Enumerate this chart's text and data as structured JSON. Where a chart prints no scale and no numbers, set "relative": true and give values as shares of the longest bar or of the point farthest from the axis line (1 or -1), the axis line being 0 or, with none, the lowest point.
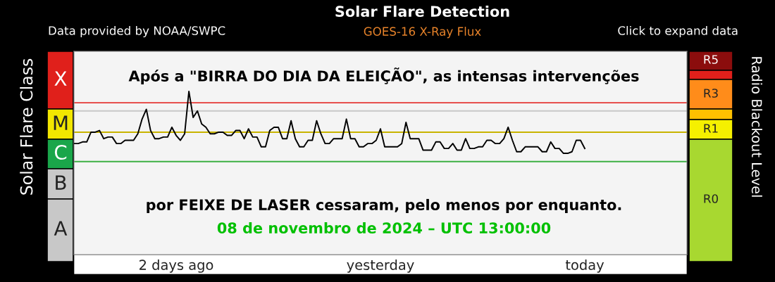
{
  "chart_data": {
    "type": "line",
    "title": "Solar Flare Detection",
    "subtitle": "GOES-16 X-Ray Flux",
    "ylabel": "Solar Flare Class",
    "y2label": "Radio Blackout Level",
    "relative": true,
    "annotations": [
      "Data provided by NOAA/SWPC",
      "Click to expand data",
      "X",
      "M",
      "C",
      "B",
      "A",
      "R5",
      "R3",
      "R1",
      "R0",
      "Após a \"BIRRA DO DIA DA ELEIÇÃO\", as intensas intervenções",
      "por FEIXE DE LASER cessaram, pelo menos por enquanto.",
      "08 de novembro de 2024 – UTC 13:00:00"
    ],
    "categories": [
      null,
      null,
      null,
      null,
      null,
      null,
      null,
      null,
      null,
      null,
      null,
      null,
      null,
      null,
      null,
      null,
      null,
      null,
      null,
      null,
      null,
      null,
      null,
      null,
      "2 days ago",
      null,
      null,
      null,
      null,
      null,
      null,
      null,
      null,
      null,
      null,
      null,
      null,
      null,
      null,
      null,
      null,
      null,
      null,
      null,
      null,
      null,
      null,
      null,
      null,
      null,
      null,
      null,
      null,
      null,
      null,
      null,
      null,
      null,
      null,
      null,
      null,
      null,
      null,
      null,
      null,
      null,
      null,
      null,
      null,
      null,
      null,
      null,
      "yesterday",
      null,
      null,
      null,
      null,
      null,
      null,
      null,
      null,
      null,
      null,
      null,
      null,
      null,
      null,
      null,
      null,
      null,
      null,
      null,
      null,
      null,
      null,
      null,
      null,
      null,
      null,
      null,
      null,
      null,
      null,
      null,
      null,
      null,
      null,
      null,
      null,
      null,
      null,
      null,
      null,
      null,
      null,
      null,
      null,
      null,
      null,
      null,
      "today",
      null,
      null,
      null,
      null,
      null,
      null,
      null,
      null,
      null,
      null,
      null,
      null,
      null,
      null,
      null,
      null,
      null,
      null,
      null,
      null,
      null,
      null,
      null,
      null
    ],
    "ref_lines": [
      {
        "axis": "y",
        "value": 0.93,
        "color": "#e53935"
      },
      {
        "axis": "y",
        "value": 0.88,
        "color": "#c8c8c8"
      },
      {
        "axis": "y",
        "value": 0.75,
        "color": "#c8b400"
      },
      {
        "axis": "y",
        "value": 0.57,
        "color": "#3cb043"
      }
    ],
    "series": [
      {
        "color": "#000000",
        "values": [
          0.68,
          0.68,
          0.69,
          0.69,
          0.75,
          0.75,
          0.76,
          0.71,
          0.72,
          0.72,
          0.68,
          0.68,
          0.7,
          0.7,
          0.7,
          0.74,
          0.83,
          0.89,
          0.76,
          0.71,
          0.71,
          0.72,
          0.72,
          0.78,
          0.73,
          0.7,
          0.74,
          1.0,
          0.84,
          0.88,
          0.8,
          0.78,
          0.74,
          0.74,
          0.75,
          0.75,
          0.73,
          0.73,
          0.76,
          0.76,
          0.71,
          0.77,
          0.72,
          0.72,
          0.66,
          0.66,
          0.76,
          0.78,
          0.78,
          0.71,
          0.71,
          0.82,
          0.71,
          0.66,
          0.66,
          0.7,
          0.7,
          0.82,
          0.74,
          0.68,
          0.68,
          0.71,
          0.71,
          0.71,
          0.83,
          0.71,
          0.71,
          0.66,
          0.66,
          0.68,
          0.68,
          0.7,
          0.77,
          0.66,
          0.66,
          0.66,
          0.66,
          0.68,
          0.81,
          0.71,
          0.71,
          0.71,
          0.64,
          0.64,
          0.64,
          0.69,
          0.69,
          0.65,
          0.65,
          0.68,
          0.64,
          0.64,
          0.71,
          0.65,
          0.65,
          0.66,
          0.66,
          0.7,
          0.7,
          0.68,
          0.68,
          0.71,
          0.78,
          0.7,
          0.63,
          0.63,
          0.66,
          0.66,
          0.66,
          0.66,
          0.63,
          0.63,
          0.69,
          0.65,
          0.65,
          0.62,
          0.62,
          0.63,
          0.7,
          0.7,
          0.65,
          null,
          null,
          null,
          null,
          null,
          null,
          null,
          null,
          null,
          null,
          null,
          null,
          null,
          null,
          null,
          null,
          null,
          null,
          null,
          null,
          null,
          null,
          null,
          null
        ]
      }
    ]
  }
}
